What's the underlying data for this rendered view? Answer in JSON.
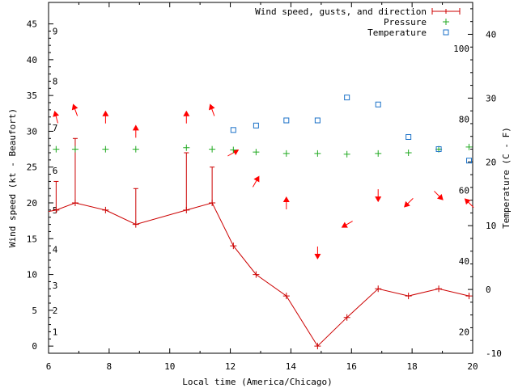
{
  "chart_data": {
    "type": "line",
    "title": "",
    "xlabel": "Local time (America/Chicago)",
    "ylabel_left": "Wind speed (kt - Beaufort)",
    "ylabel_right": "Temperature (C - F)",
    "xlim": [
      6,
      20
    ],
    "ylim_left": [
      -1,
      48
    ],
    "ylim_right_celsius": [
      -10,
      45
    ],
    "x_ticks": [
      "6",
      "8",
      "10",
      "12",
      "14",
      "16",
      "18",
      "20"
    ],
    "y_left_ticks": [
      "0",
      "5",
      "10",
      "15",
      "20",
      "25",
      "30",
      "35",
      "40",
      "45"
    ],
    "y_right_c_ticks": [
      "-10",
      "0",
      "10",
      "20",
      "30",
      "40"
    ],
    "y_right_f_ticks": [
      "20",
      "40",
      "60",
      "80",
      "100"
    ],
    "beaufort_labels": [
      "1",
      "2",
      "3",
      "4",
      "5",
      "6",
      "7",
      "8",
      "9"
    ],
    "grid": false,
    "legend_position": "top-right",
    "colors": {
      "wind": "#cc0000",
      "pressure": "#22aa22",
      "temperature": "#1c72c8",
      "arrow": "#ff0000",
      "axis": "#000000"
    },
    "series": [
      {
        "name": "Wind speed, gusts, and direction",
        "kind": "line-with-gusts",
        "x": [
          6.25,
          6.88,
          7.88,
          8.88,
          10.55,
          11.4,
          12.1,
          12.85,
          13.85,
          14.88,
          15.85,
          16.88,
          17.88,
          18.88,
          19.88
        ],
        "speed": [
          19,
          20,
          19,
          17,
          19,
          20,
          14,
          10,
          7,
          0,
          4,
          8,
          7,
          8,
          7
        ],
        "gust": [
          23,
          29,
          null,
          22,
          27,
          25,
          null,
          null,
          null,
          null,
          null,
          null,
          null,
          null,
          null
        ],
        "direction_deg": [
          345,
          340,
          0,
          0,
          0,
          340,
          60,
          30,
          0,
          180,
          240,
          180,
          225,
          135,
          315
        ]
      },
      {
        "name": "Pressure",
        "kind": "points",
        "marker": "plus",
        "x": [
          6.25,
          6.88,
          7.88,
          8.88,
          10.55,
          11.4,
          12.1,
          12.85,
          13.85,
          14.88,
          15.85,
          16.88,
          17.88,
          18.88,
          19.88
        ],
        "y": [
          27.5,
          27.5,
          27.5,
          27.5,
          27.7,
          27.5,
          27.4,
          27.1,
          26.9,
          26.9,
          26.8,
          26.9,
          27.0,
          27.5,
          27.8
        ]
      },
      {
        "name": "Temperature",
        "kind": "points",
        "marker": "square",
        "x": [
          12.1,
          12.85,
          13.85,
          14.88,
          15.85,
          16.88,
          17.88,
          18.88,
          19.88
        ],
        "y_celsius": [
          25.0,
          25.7,
          26.5,
          26.5,
          30.1,
          29.0,
          23.9,
          22.0,
          20.2
        ]
      }
    ]
  }
}
